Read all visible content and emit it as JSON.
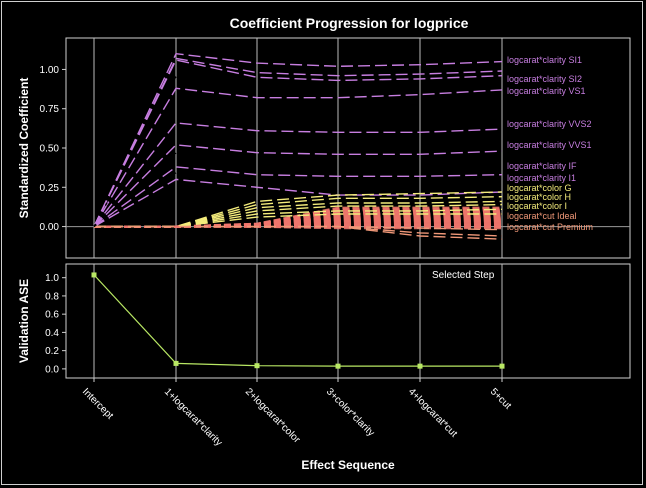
{
  "chart_data": {
    "type": "line",
    "title": "Coefficient Progression for logprice",
    "xlabel": "Effect Sequence",
    "categories": [
      "Intercept",
      "1+logcarat*clarity",
      "2+logcarat*color",
      "3+color*clarity",
      "4+logcarat*cut",
      "5+cut"
    ],
    "top_panel": {
      "ylabel": "Standardized Coefficient",
      "ylim": [
        -0.2,
        1.2
      ],
      "yticks": [
        "0.00",
        "0.25",
        "0.50",
        "0.75",
        "1.00"
      ],
      "yticks_values": [
        0,
        0.25,
        0.5,
        0.75,
        1.0
      ],
      "reference_line": 0,
      "grid": "vertical",
      "series": [
        {
          "name": "logcarat*clarity SI1",
          "color": "#c77ee0",
          "values": [
            0,
            1.1,
            1.04,
            1.02,
            1.03,
            1.05
          ]
        },
        {
          "name": "",
          "color": "#c77ee0",
          "values": [
            0,
            1.07,
            0.98,
            0.96,
            0.97,
            0.99
          ]
        },
        {
          "name": "logcarat*clarity SI2",
          "color": "#c77ee0",
          "values": [
            0,
            1.06,
            0.95,
            0.93,
            0.94,
            0.96
          ]
        },
        {
          "name": "logcarat*clarity VS1",
          "color": "#c77ee0",
          "values": [
            0,
            0.88,
            0.82,
            0.82,
            0.84,
            0.87
          ]
        },
        {
          "name": "logcarat*clarity VVS2",
          "color": "#c77ee0",
          "values": [
            0,
            0.66,
            0.61,
            0.6,
            0.6,
            0.62
          ]
        },
        {
          "name": "logcarat*clarity VVS1",
          "color": "#c77ee0",
          "values": [
            0,
            0.52,
            0.47,
            0.46,
            0.46,
            0.48
          ]
        },
        {
          "name": "logcarat*clarity IF",
          "color": "#c77ee0",
          "values": [
            0,
            0.38,
            0.33,
            0.32,
            0.32,
            0.33
          ]
        },
        {
          "name": "logcarat*clarity I1",
          "color": "#c77ee0",
          "values": [
            0,
            0.3,
            0.25,
            0.2,
            0.2,
            0.22
          ]
        },
        {
          "name": "logcarat*color G",
          "color": "#f4ec7c",
          "values": [
            0,
            0,
            0.16,
            0.2,
            0.21,
            0.22
          ]
        },
        {
          "name": "logcarat*color H",
          "color": "#f4ec7c",
          "values": [
            0,
            0,
            0.14,
            0.18,
            0.18,
            0.19
          ]
        },
        {
          "name": "logcarat*color I",
          "color": "#f4ec7c",
          "values": [
            0,
            0,
            0.12,
            0.15,
            0.15,
            0.16
          ]
        },
        {
          "name": "",
          "color": "#f4ec7c",
          "values": [
            0,
            0,
            0.1,
            0.13,
            0.13,
            0.14
          ]
        },
        {
          "name": "",
          "color": "#f4ec7c",
          "values": [
            0,
            0,
            0.08,
            0.1,
            0.1,
            0.11
          ]
        },
        {
          "name": "",
          "color": "#f4ec7c",
          "values": [
            0,
            0,
            0.06,
            0.08,
            0.08,
            0.08
          ]
        },
        {
          "name": "logcarat*cut Ideal",
          "color": "#f09878",
          "values": [
            0,
            0,
            0,
            0,
            -0.01,
            -0.02
          ]
        },
        {
          "name": "logcarat*cut Premium",
          "color": "#f09878",
          "values": [
            0,
            0,
            0,
            0,
            -0.04,
            -0.06
          ]
        },
        {
          "name": "",
          "color": "#f09878",
          "values": [
            0,
            0,
            0,
            0,
            -0.06,
            -0.08
          ]
        }
      ],
      "color_interaction_band": {
        "color": "#f0766c",
        "start_step": 2,
        "range": [
          -0.01,
          0.12
        ]
      }
    },
    "bottom_panel": {
      "ylabel": "Validation ASE",
      "ylim": [
        -0.1,
        1.15
      ],
      "yticks": [
        "0.0",
        "0.2",
        "0.4",
        "0.6",
        "0.8",
        "1.0"
      ],
      "yticks_values": [
        0,
        0.2,
        0.4,
        0.6,
        0.8,
        1.0
      ],
      "values": [
        1.03,
        0.06,
        0.035,
        0.03,
        0.03,
        0.03
      ],
      "color": "#b9e864",
      "annotation": "Selected Step"
    }
  }
}
